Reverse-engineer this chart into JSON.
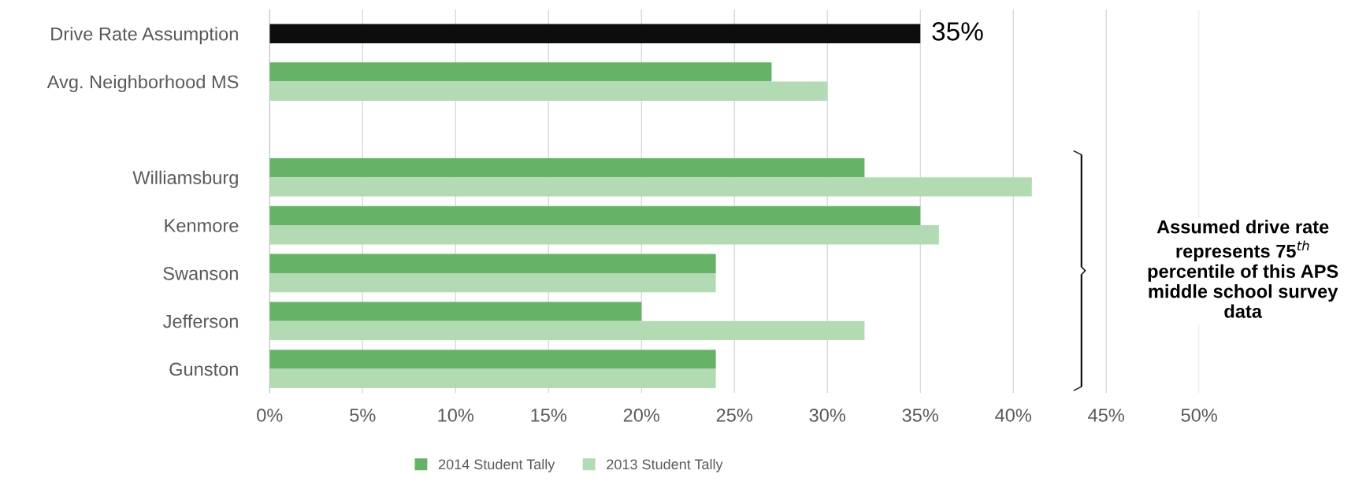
{
  "chart_data": {
    "type": "bar",
    "orientation": "horizontal",
    "categories": [
      "Drive Rate Assumption",
      "Avg. Neighborhood MS",
      null,
      "Williamsburg",
      "Kenmore",
      "Swanson",
      "Jefferson",
      "Gunston"
    ],
    "series": [
      {
        "color": "#0d0d0d",
        "values": [
          35,
          null,
          null,
          null,
          null,
          null,
          null,
          null
        ],
        "value_labels": [
          "35%",
          null,
          null,
          null,
          null,
          null,
          null,
          null
        ]
      },
      {
        "name": "2014 Student Tally",
        "color": "#66b266",
        "values": [
          null,
          27,
          null,
          32,
          35,
          24,
          20,
          24
        ]
      },
      {
        "name": "2013 Student Tally",
        "color": "#b3dbb3",
        "values": [
          null,
          30,
          null,
          41,
          36,
          24,
          32,
          24
        ]
      }
    ],
    "xlim": [
      0,
      50
    ],
    "xticks": [
      {
        "value": 0,
        "label": "0%"
      },
      {
        "value": 5,
        "label": "5%"
      },
      {
        "value": 10,
        "label": "10%"
      },
      {
        "value": 15,
        "label": "15%"
      },
      {
        "value": 20,
        "label": "20%"
      },
      {
        "value": 25,
        "label": "25%"
      },
      {
        "value": 30,
        "label": "30%"
      },
      {
        "value": 35,
        "label": "35%"
      },
      {
        "value": 40,
        "label": "40%"
      },
      {
        "value": 45,
        "label": "45%"
      },
      {
        "value": 50,
        "label": "50%"
      }
    ],
    "grid": "x",
    "legend": "bottom",
    "annotations": [
      "Assumed drive rate represents 75$^{th}$ percentile of this APS middle school survey data"
    ]
  }
}
